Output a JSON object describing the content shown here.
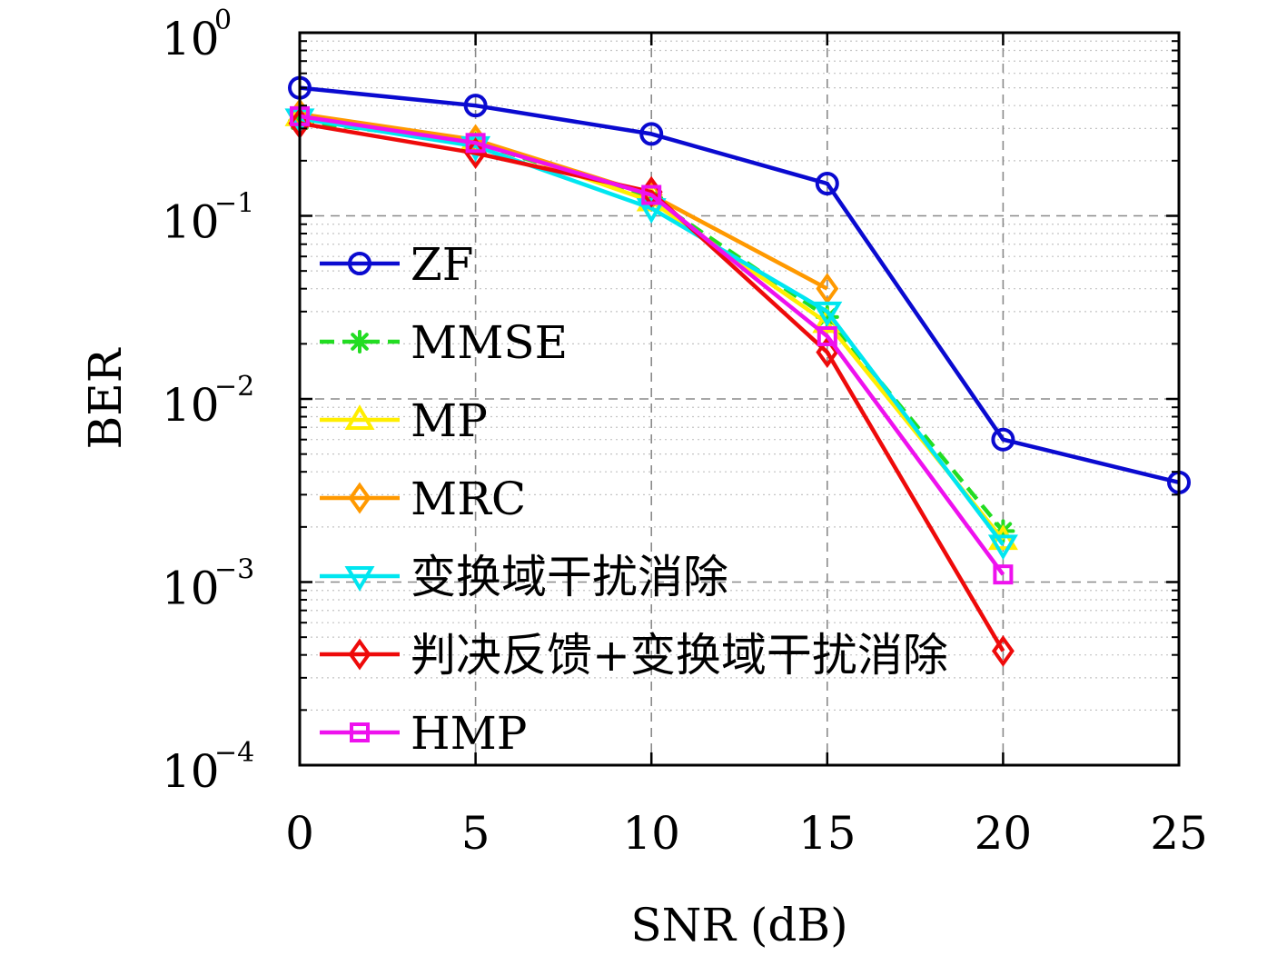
{
  "chart_data": {
    "type": "line",
    "title": "",
    "xlabel": "SNR (dB)",
    "ylabel": "BER",
    "x": [
      0,
      5,
      10,
      15,
      20,
      25
    ],
    "xlim": [
      0,
      25
    ],
    "ylim": [
      0.0001,
      1
    ],
    "yscale": "log",
    "x_tick_labels": [
      "0",
      "5",
      "10",
      "15",
      "20",
      "25"
    ],
    "y_tick_labels": [
      {
        "base": "10",
        "exp": "0"
      },
      {
        "base": "10",
        "exp": "−1"
      },
      {
        "base": "10",
        "exp": "−2"
      },
      {
        "base": "10",
        "exp": "−3"
      },
      {
        "base": "10",
        "exp": "−4"
      }
    ],
    "grid": true,
    "legend_position": "left",
    "series": [
      {
        "name": "ZF",
        "color": "#0a0ad0",
        "marker": "circle",
        "dash": "solid",
        "x": [
          0,
          5,
          10,
          15,
          20,
          25
        ],
        "y": [
          0.5,
          0.4,
          0.28,
          0.15,
          0.006,
          0.0035
        ]
      },
      {
        "name": "MMSE",
        "color": "#22dd22",
        "marker": "asterisk",
        "dash": "dashed",
        "x": [
          0,
          5,
          10,
          15,
          20
        ],
        "y": [
          0.33,
          0.25,
          0.125,
          0.028,
          0.0019
        ]
      },
      {
        "name": "MP",
        "color": "#ffee00",
        "marker": "triangle-up",
        "dash": "solid",
        "x": [
          0,
          5,
          10,
          15,
          20
        ],
        "y": [
          0.35,
          0.26,
          0.12,
          0.026,
          0.0017
        ]
      },
      {
        "name": "MRC",
        "color": "#ff9900",
        "marker": "diamond",
        "dash": "solid",
        "x": [
          0,
          5,
          10,
          15
        ],
        "y": [
          0.36,
          0.26,
          0.13,
          0.04
        ]
      },
      {
        "name": "变换域干扰消除",
        "color": "#00e6f0",
        "marker": "triangle-down",
        "dash": "solid",
        "x": [
          0,
          5,
          10,
          15,
          20
        ],
        "y": [
          0.34,
          0.24,
          0.11,
          0.03,
          0.0016
        ]
      },
      {
        "name": "判决反馈+变换域干扰消除",
        "color": "#ee0a0a",
        "marker": "diamond",
        "dash": "solid",
        "x": [
          0,
          5,
          10,
          15,
          20
        ],
        "y": [
          0.32,
          0.22,
          0.135,
          0.018,
          0.00042
        ]
      },
      {
        "name": "HMP",
        "color": "#ee11ee",
        "marker": "square",
        "dash": "solid",
        "x": [
          0,
          5,
          10,
          15,
          20
        ],
        "y": [
          0.35,
          0.25,
          0.13,
          0.022,
          0.0011
        ]
      }
    ]
  }
}
